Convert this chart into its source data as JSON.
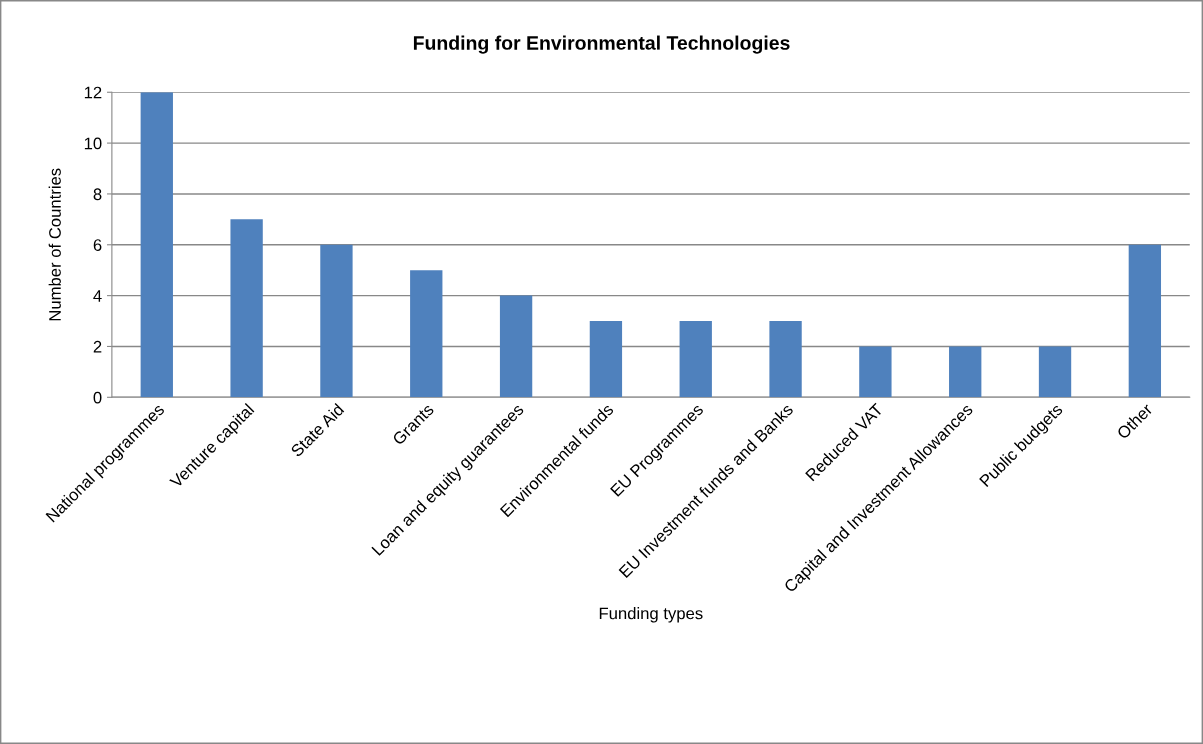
{
  "chart_data": {
    "type": "bar",
    "title": "Funding for Environmental Technologies",
    "xlabel": "Funding types",
    "ylabel": "Number of Countries",
    "categories": [
      "National programmes",
      "Venture capital",
      "State Aid",
      "Grants",
      "Loan and equity guarantees",
      "Environmental funds",
      "EU Programmes",
      "EU Investment funds and Banks",
      "Reduced VAT",
      "Capital and Investment Allowances",
      "Public budgets",
      "Other"
    ],
    "values": [
      12,
      7,
      6,
      5,
      4,
      3,
      3,
      3,
      2,
      2,
      2,
      6
    ],
    "color": "#4f81bd",
    "ylim": [
      0,
      12
    ],
    "yticks": [
      0,
      2,
      4,
      6,
      8,
      10,
      12
    ],
    "grid": "y",
    "legend": false
  }
}
